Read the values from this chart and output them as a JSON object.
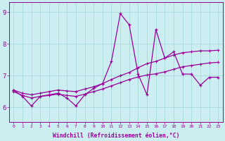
{
  "xlabel": "Windchill (Refroidissement éolien,°C)",
  "background_color": "#cceef0",
  "grid_color": "#aadddd",
  "line_color": "#990099",
  "x_ticks": [
    0,
    1,
    2,
    3,
    4,
    5,
    6,
    7,
    8,
    9,
    10,
    11,
    12,
    13,
    14,
    15,
    16,
    17,
    18,
    19,
    20,
    21,
    22,
    23
  ],
  "yticks": [
    6,
    7,
    8,
    9
  ],
  "ylim": [
    5.55,
    9.3
  ],
  "xlim": [
    -0.5,
    23.5
  ],
  "series": [
    {
      "x": [
        0,
        1,
        2,
        3,
        4,
        5,
        6,
        7,
        8,
        9,
        10,
        11,
        12,
        13,
        14,
        15,
        16,
        17,
        18,
        19,
        20,
        21,
        22,
        23
      ],
      "y": [
        6.55,
        6.35,
        6.05,
        6.35,
        6.4,
        6.45,
        6.3,
        6.05,
        6.4,
        6.6,
        6.75,
        7.45,
        8.95,
        8.6,
        7.05,
        6.4,
        8.45,
        7.55,
        7.75,
        7.05,
        7.05,
        6.7,
        6.95,
        6.95
      ]
    },
    {
      "x": [
        0,
        1,
        2,
        3,
        4,
        5,
        6,
        7,
        8,
        9,
        10,
        11,
        12,
        13,
        14,
        15,
        16,
        17,
        18,
        19,
        20,
        21,
        22,
        23
      ],
      "y": [
        6.55,
        6.45,
        6.4,
        6.45,
        6.5,
        6.55,
        6.52,
        6.5,
        6.58,
        6.65,
        6.75,
        6.88,
        7.0,
        7.1,
        7.25,
        7.38,
        7.45,
        7.55,
        7.65,
        7.72,
        7.75,
        7.78,
        7.78,
        7.8
      ]
    },
    {
      "x": [
        0,
        1,
        2,
        3,
        4,
        5,
        6,
        7,
        8,
        9,
        10,
        11,
        12,
        13,
        14,
        15,
        16,
        17,
        18,
        19,
        20,
        21,
        22,
        23
      ],
      "y": [
        6.5,
        6.38,
        6.3,
        6.35,
        6.38,
        6.42,
        6.38,
        6.35,
        6.42,
        6.5,
        6.58,
        6.68,
        6.78,
        6.88,
        6.96,
        7.02,
        7.06,
        7.12,
        7.2,
        7.28,
        7.32,
        7.36,
        7.4,
        7.42
      ]
    }
  ]
}
